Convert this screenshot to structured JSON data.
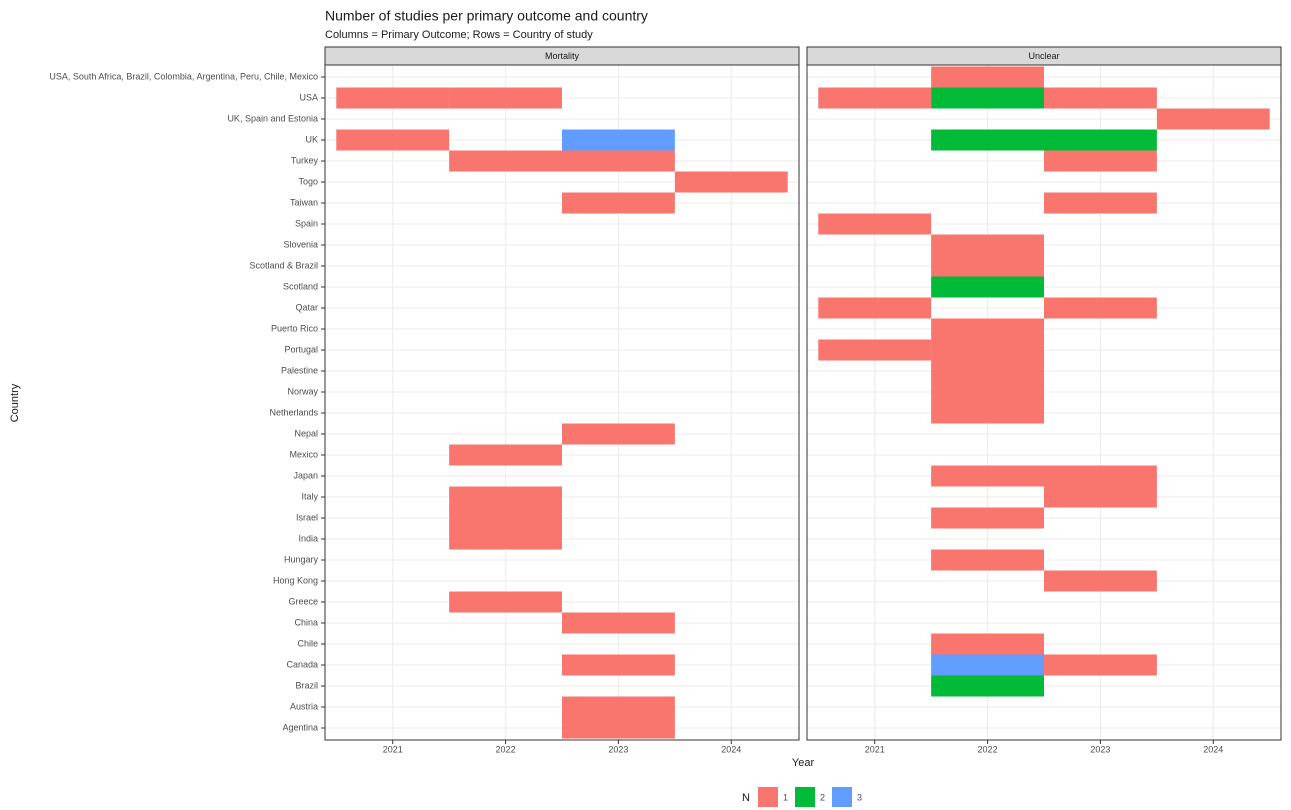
{
  "chart_data": {
    "type": "heatmap",
    "title": "Number of studies per primary outcome and country",
    "subtitle": "Columns = Primary Outcome; Rows = Country of study",
    "x_label": "Year",
    "y_label": "Country",
    "x": [
      2021,
      2022,
      2023,
      2024
    ],
    "xlim": [
      2020.4,
      2024.6
    ],
    "xticks": [
      2021,
      2022,
      2023,
      2024
    ],
    "grid": true,
    "categories": [
      "USA, South Africa, Brazil, Colombia, Argentina, Peru, Chile, Mexico",
      "USA",
      "UK, Spain and Estonia",
      "UK",
      "Turkey",
      "Togo",
      "Taiwan",
      "Spain",
      "Slovenia",
      "Scotland & Brazil",
      "Scotland",
      "Qatar",
      "Puerto Rico",
      "Portugal",
      "Palestine",
      "Norway",
      "Netherlands",
      "Nepal",
      "Mexico",
      "Japan",
      "Italy",
      "Israel",
      "India",
      "Hungary",
      "Hong Kong",
      "Greece",
      "China",
      "Chile",
      "Canada",
      "Brazil",
      "Austria",
      "Agentina"
    ],
    "legend": {
      "title": "N",
      "levels": [
        1,
        2,
        3
      ],
      "colors": [
        "#F8766D",
        "#00BA38",
        "#619CFF"
      ],
      "position": "bottom"
    },
    "facets": [
      {
        "name": "Mortality",
        "z": [
          [
            null,
            null,
            null,
            null
          ],
          [
            1,
            1,
            null,
            null
          ],
          [
            null,
            null,
            null,
            null
          ],
          [
            1,
            null,
            3,
            null
          ],
          [
            null,
            1,
            1,
            null
          ],
          [
            null,
            null,
            null,
            1
          ],
          [
            null,
            null,
            1,
            null
          ],
          [
            null,
            null,
            null,
            null
          ],
          [
            null,
            null,
            null,
            null
          ],
          [
            null,
            null,
            null,
            null
          ],
          [
            null,
            null,
            null,
            null
          ],
          [
            null,
            null,
            null,
            null
          ],
          [
            null,
            null,
            null,
            null
          ],
          [
            null,
            null,
            null,
            null
          ],
          [
            null,
            null,
            null,
            null
          ],
          [
            null,
            null,
            null,
            null
          ],
          [
            null,
            null,
            null,
            null
          ],
          [
            null,
            null,
            1,
            null
          ],
          [
            null,
            1,
            null,
            null
          ],
          [
            null,
            null,
            null,
            null
          ],
          [
            null,
            1,
            null,
            null
          ],
          [
            null,
            1,
            null,
            null
          ],
          [
            null,
            1,
            null,
            null
          ],
          [
            null,
            null,
            null,
            null
          ],
          [
            null,
            null,
            null,
            null
          ],
          [
            null,
            1,
            null,
            null
          ],
          [
            null,
            null,
            1,
            null
          ],
          [
            null,
            null,
            null,
            null
          ],
          [
            null,
            null,
            1,
            null
          ],
          [
            null,
            null,
            null,
            null
          ],
          [
            null,
            null,
            1,
            null
          ],
          [
            null,
            null,
            1,
            null
          ]
        ]
      },
      {
        "name": "Unclear",
        "z": [
          [
            null,
            1,
            null,
            null
          ],
          [
            1,
            2,
            1,
            null
          ],
          [
            null,
            null,
            null,
            1
          ],
          [
            null,
            2,
            2,
            null
          ],
          [
            null,
            null,
            1,
            null
          ],
          [
            null,
            null,
            null,
            null
          ],
          [
            null,
            null,
            1,
            null
          ],
          [
            1,
            null,
            null,
            null
          ],
          [
            null,
            1,
            null,
            null
          ],
          [
            null,
            1,
            null,
            null
          ],
          [
            null,
            2,
            null,
            null
          ],
          [
            1,
            null,
            1,
            null
          ],
          [
            null,
            1,
            null,
            null
          ],
          [
            1,
            1,
            null,
            null
          ],
          [
            null,
            1,
            null,
            null
          ],
          [
            null,
            1,
            null,
            null
          ],
          [
            null,
            1,
            null,
            null
          ],
          [
            null,
            null,
            null,
            null
          ],
          [
            null,
            null,
            null,
            null
          ],
          [
            null,
            1,
            1,
            null
          ],
          [
            null,
            null,
            1,
            null
          ],
          [
            null,
            1,
            null,
            null
          ],
          [
            null,
            null,
            null,
            null
          ],
          [
            null,
            1,
            null,
            null
          ],
          [
            null,
            null,
            1,
            null
          ],
          [
            null,
            null,
            null,
            null
          ],
          [
            null,
            null,
            null,
            null
          ],
          [
            null,
            1,
            null,
            null
          ],
          [
            null,
            3,
            1,
            null
          ],
          [
            null,
            2,
            null,
            null
          ],
          [
            null,
            null,
            null,
            null
          ],
          [
            null,
            null,
            null,
            null
          ]
        ]
      }
    ]
  }
}
